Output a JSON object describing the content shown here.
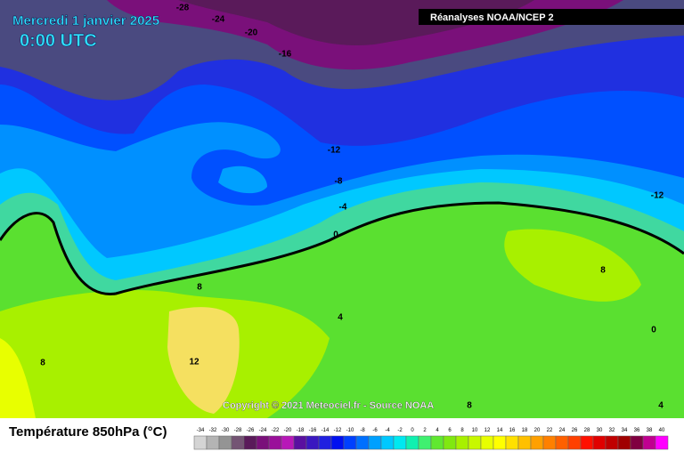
{
  "header": {
    "date": "Mercredi 1 janvier 2025",
    "time": "0:00 UTC",
    "source": "Réanalyses NOAA/NCEP 2"
  },
  "copyright": "Copyright © 2021 Meteociel.fr - Source NOAA",
  "legend": {
    "title": "Température 850hPa (°C)",
    "ticks": [
      -34,
      -32,
      -30,
      -28,
      -26,
      -24,
      -22,
      -20,
      -18,
      -16,
      -14,
      -12,
      -10,
      -8,
      -6,
      -4,
      -2,
      0,
      2,
      4,
      6,
      8,
      10,
      12,
      14,
      16,
      18,
      20,
      22,
      24,
      26,
      28,
      30,
      32,
      34,
      36,
      38,
      40
    ],
    "colors": [
      "#d4d4d4",
      "#b4b4b4",
      "#949494",
      "#745474",
      "#5a1a5a",
      "#7a107a",
      "#9a109a",
      "#b818b8",
      "#5a10a0",
      "#3a18c0",
      "#2020e0",
      "#0010f0",
      "#0040ff",
      "#0070ff",
      "#00a0ff",
      "#00c8ff",
      "#00e8f0",
      "#10f0b0",
      "#40f070",
      "#60e830",
      "#80e810",
      "#a8f000",
      "#c8f800",
      "#e8ff00",
      "#ffff00",
      "#ffe000",
      "#ffc000",
      "#ffa000",
      "#ff8000",
      "#ff6000",
      "#ff4000",
      "#ff1000",
      "#e00000",
      "#c00000",
      "#a00000",
      "#800040",
      "#c00090",
      "#ff00ff"
    ]
  },
  "contour_labels": [
    -28,
    -24,
    -20,
    -16,
    -12,
    -8,
    -4,
    0,
    8,
    4,
    8,
    12,
    8,
    -12,
    0,
    8,
    4
  ]
}
